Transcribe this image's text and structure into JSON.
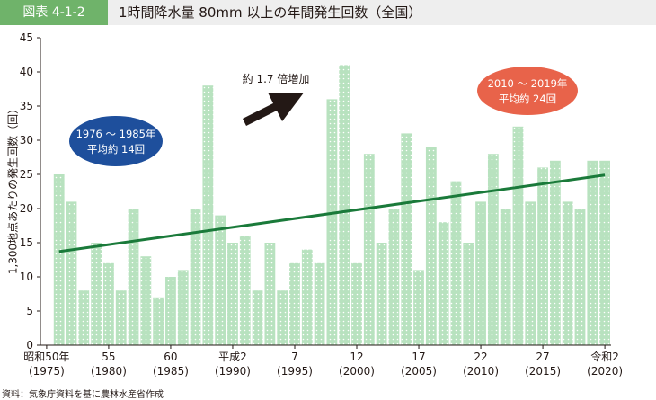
{
  "figure": {
    "number": "図表 4-1-2",
    "title": "1時間降水量 80mm 以上の年間発生回数（全国）",
    "source": "資料：気象庁資料を基に農林水産省作成"
  },
  "annotations": {
    "early_bubble": [
      "1976 ～ 1985年",
      "平均約 14回"
    ],
    "late_bubble": [
      "2010 ～ 2019年",
      "平均約 24回"
    ],
    "increase": "約 1.7 倍増加"
  },
  "colors": {
    "bar": "#b8e2bf",
    "bar_dots": "#ffffff",
    "trend": "#1a7a3a",
    "early_bubble": "#1e4f9c",
    "late_bubble": "#e8634a",
    "header_tag": "#6fb36a"
  },
  "chart_data": {
    "type": "bar",
    "title": "1時間降水量 80mm 以上の年間発生回数（全国）",
    "ylabel": "1,300地点あたりの発生回数（回）",
    "xlabel": "",
    "ylim": [
      0,
      45
    ],
    "yticks": [
      0,
      5,
      10,
      15,
      20,
      25,
      30,
      35,
      40,
      45
    ],
    "grid": false,
    "categories": [
      1976,
      1977,
      1978,
      1979,
      1980,
      1981,
      1982,
      1983,
      1984,
      1985,
      1986,
      1987,
      1988,
      1989,
      1990,
      1991,
      1992,
      1993,
      1994,
      1995,
      1996,
      1997,
      1998,
      1999,
      2000,
      2001,
      2002,
      2003,
      2004,
      2005,
      2006,
      2007,
      2008,
      2009,
      2010,
      2011,
      2012,
      2013,
      2014,
      2015,
      2016,
      2017,
      2018,
      2019,
      2020
    ],
    "values": [
      25,
      21,
      8,
      15,
      12,
      8,
      20,
      13,
      7,
      10,
      11,
      20,
      38,
      19,
      15,
      16,
      8,
      15,
      8,
      12,
      14,
      12,
      36,
      41,
      12,
      28,
      15,
      20,
      31,
      11,
      29,
      18,
      24,
      15,
      21,
      28,
      20,
      32,
      21,
      26,
      27,
      21,
      20,
      27,
      27
    ],
    "trend": {
      "start_value": 13.7,
      "end_value": 24.9
    },
    "xtick_labels": [
      {
        "year": 1975,
        "era": "昭和50年",
        "western": "(1975)"
      },
      {
        "year": 1980,
        "era": "55",
        "western": "(1980)"
      },
      {
        "year": 1985,
        "era": "60",
        "western": "(1985)"
      },
      {
        "year": 1990,
        "era": "平成2",
        "western": "(1990)"
      },
      {
        "year": 1995,
        "era": "7",
        "western": "(1995)"
      },
      {
        "year": 2000,
        "era": "12",
        "western": "(2000)"
      },
      {
        "year": 2005,
        "era": "17",
        "western": "(2005)"
      },
      {
        "year": 2010,
        "era": "22",
        "western": "(2010)"
      },
      {
        "year": 2015,
        "era": "27",
        "western": "(2015)"
      },
      {
        "year": 2020,
        "era": "令和2",
        "western": "(2020)"
      }
    ]
  }
}
